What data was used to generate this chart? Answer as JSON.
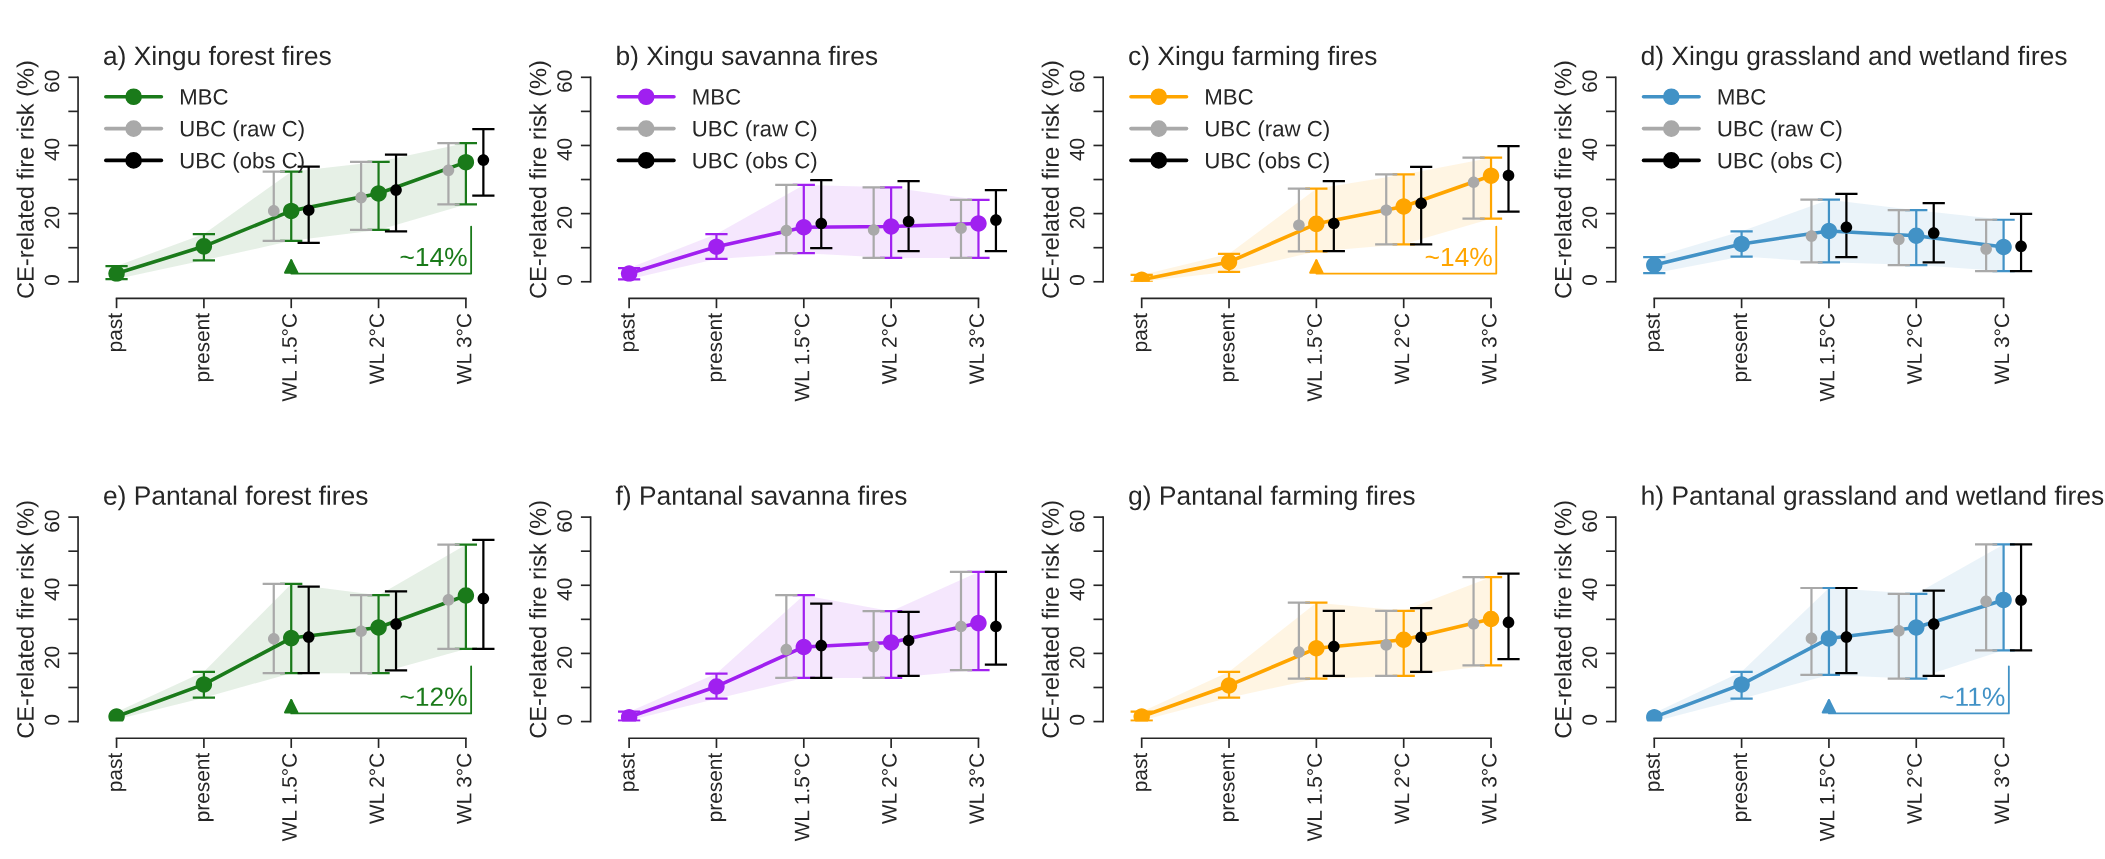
{
  "chart_data": [
    {
      "type": "line",
      "title": "a) Xingu forest fires",
      "ylabel": "CE-related fire risk (%)",
      "categories": [
        "past",
        "present",
        "WL 1.5°C",
        "WL 2°C",
        "WL 3°C"
      ],
      "ylim": [
        0,
        60
      ],
      "yticks": [
        0,
        {
          "value": 10,
          "label": null
        },
        20,
        {
          "value": 30,
          "label": null
        },
        40,
        {
          "value": 50,
          "label": null
        },
        60
      ],
      "marker": "circle",
      "legend": "top left",
      "annotations": [
        "~14%"
      ],
      "series": [
        {
          "name": "MBC",
          "color": "#1a7a1a",
          "values": [
            2.4,
            10.4,
            20.8,
            25.9,
            35.1
          ],
          "errors": [
            [
              0.8,
              4.6
            ],
            [
              6.3,
              14
            ],
            [
              12,
              32.3
            ],
            [
              15.2,
              35.2
            ],
            [
              22.7,
              40.7
            ]
          ],
          "lower": [
            0.8,
            6.3,
            12,
            15.2,
            22.7
          ],
          "upper": [
            4.6,
            14,
            32.3,
            35.2,
            40.7
          ]
        },
        {
          "name": "UBC (raw C)",
          "type": "scatter",
          "color": "#a9a9a9",
          "values": [
            null,
            null,
            20.8,
            24.7,
            32.7
          ],
          "errors": [
            null,
            null,
            [
              12,
              32.3
            ],
            [
              15.2,
              35.2
            ],
            [
              22.7,
              40.7
            ]
          ]
        },
        {
          "name": "UBC (obs C)",
          "type": "scatter",
          "color": "#000000",
          "values": [
            null,
            null,
            21,
            26.9,
            35.7
          ],
          "errors": [
            null,
            null,
            [
              11.4,
              33.8
            ],
            [
              14.8,
              37.3
            ],
            [
              25.3,
              44.8
            ]
          ]
        }
      ]
    },
    {
      "type": "line",
      "title": "b) Xingu savanna fires",
      "ylabel": "CE-related fire risk (%)",
      "categories": [
        "past",
        "present",
        "WL 1.5°C",
        "WL 2°C",
        "WL 3°C"
      ],
      "ylim": [
        0,
        60
      ],
      "yticks": [
        0,
        {
          "value": 10,
          "label": null
        },
        20,
        {
          "value": 30,
          "label": null
        },
        40,
        {
          "value": 50,
          "label": null
        },
        60
      ],
      "marker": "circle",
      "legend": "top left",
      "series": [
        {
          "name": "MBC",
          "color": "#a020f0",
          "values": [
            2.4,
            10.3,
            16,
            16.2,
            17.1
          ],
          "errors": [
            [
              0.7,
              4
            ],
            [
              6.7,
              14
            ],
            [
              8.4,
              28.4
            ],
            [
              7,
              27.7
            ],
            [
              7,
              24
            ]
          ],
          "lower": [
            0.7,
            6.7,
            8.4,
            7,
            7
          ],
          "upper": [
            4,
            14,
            28.4,
            27.7,
            24
          ]
        },
        {
          "name": "UBC (raw C)",
          "type": "scatter",
          "color": "#a9a9a9",
          "values": [
            null,
            null,
            15,
            15.2,
            15.7
          ],
          "errors": [
            null,
            null,
            [
              8.4,
              28.4
            ],
            [
              7,
              27.7
            ],
            [
              7,
              24
            ]
          ]
        },
        {
          "name": "UBC (obs C)",
          "type": "scatter",
          "color": "#000000",
          "values": [
            null,
            null,
            17.1,
            17.7,
            18.1
          ],
          "errors": [
            null,
            null,
            [
              9.9,
              29.8
            ],
            [
              9,
              29.5
            ],
            [
              9,
              26.9
            ]
          ]
        }
      ]
    },
    {
      "type": "line",
      "title": "c) Xingu farming fires",
      "ylabel": "CE-related fire risk (%)",
      "categories": [
        "past",
        "present",
        "WL 1.5°C",
        "WL 2°C",
        "WL 3°C"
      ],
      "ylim": [
        0,
        60
      ],
      "yticks": [
        0,
        {
          "value": 10,
          "label": null
        },
        20,
        {
          "value": 30,
          "label": null
        },
        40,
        {
          "value": 50,
          "label": null
        },
        60
      ],
      "marker": "circle",
      "legend": "top left",
      "annotations": [
        "~14%"
      ],
      "series": [
        {
          "name": "MBC",
          "color": "#ffa500",
          "values": [
            0.6,
            5.8,
            17,
            22.1,
            31.1
          ],
          "errors": [
            [
              0,
              2
            ],
            [
              2.9,
              8.2
            ],
            [
              8.9,
              27.3
            ],
            [
              11,
              31.5
            ],
            [
              18.5,
              36.4
            ]
          ],
          "lower": [
            0,
            2.9,
            8.9,
            11,
            18.5
          ],
          "upper": [
            2,
            8.2,
            27.3,
            31.5,
            36.4
          ]
        },
        {
          "name": "UBC (raw C)",
          "type": "scatter",
          "color": "#a9a9a9",
          "values": [
            null,
            null,
            16.6,
            21,
            29.2
          ],
          "errors": [
            null,
            null,
            [
              8.9,
              27.3
            ],
            [
              11,
              31.5
            ],
            [
              18.5,
              36.4
            ]
          ]
        },
        {
          "name": "UBC (obs C)",
          "type": "scatter",
          "color": "#000000",
          "values": [
            null,
            null,
            17.1,
            23,
            31.2
          ],
          "errors": [
            null,
            null,
            [
              9,
              29.5
            ],
            [
              11,
              33.7
            ],
            [
              20.6,
              39.8
            ]
          ]
        }
      ]
    },
    {
      "type": "line",
      "title": "d) Xingu grassland and wetland fires",
      "ylabel": "CE-related fire risk (%)",
      "categories": [
        "past",
        "present",
        "WL 1.5°C",
        "WL 2°C",
        "WL 3°C"
      ],
      "ylim": [
        0,
        60
      ],
      "yticks": [
        0,
        {
          "value": 10,
          "label": null
        },
        20,
        {
          "value": 30,
          "label": null
        },
        40,
        {
          "value": 50,
          "label": null
        },
        60
      ],
      "marker": "circle",
      "legend": "top left",
      "series": [
        {
          "name": "MBC",
          "color": "#4292c6",
          "values": [
            4.9,
            11.1,
            14.9,
            13.5,
            10.2
          ],
          "errors": [
            [
              2.5,
              7.2
            ],
            [
              7.4,
              14.8
            ],
            [
              5.7,
              24.1
            ],
            [
              4.9,
              21
            ],
            [
              3.1,
              18.2
            ]
          ],
          "lower": [
            2.5,
            7.4,
            5.7,
            4.9,
            3.1
          ],
          "upper": [
            7.2,
            14.8,
            24.1,
            21,
            18.2
          ]
        },
        {
          "name": "UBC (raw C)",
          "type": "scatter",
          "color": "#a9a9a9",
          "values": [
            null,
            null,
            13.4,
            12.4,
            9.6
          ],
          "errors": [
            null,
            null,
            [
              5.7,
              24.1
            ],
            [
              4.9,
              21
            ],
            [
              3.1,
              18.2
            ]
          ]
        },
        {
          "name": "UBC (obs C)",
          "type": "scatter",
          "color": "#000000",
          "values": [
            null,
            null,
            16,
            14.3,
            10.4
          ],
          "errors": [
            null,
            null,
            [
              7.2,
              25.8
            ],
            [
              5.7,
              23.1
            ],
            [
              3.1,
              19.9
            ]
          ]
        }
      ]
    },
    {
      "type": "line",
      "title": "e) Pantanal forest fires",
      "ylabel": "CE-related fire risk (%)",
      "categories": [
        "past",
        "present",
        "WL 1.5°C",
        "WL 2°C",
        "WL 3°C"
      ],
      "ylim": [
        0,
        60
      ],
      "yticks": [
        0,
        {
          "value": 10,
          "label": null
        },
        20,
        {
          "value": 30,
          "label": null
        },
        40,
        {
          "value": 50,
          "label": null
        },
        60
      ],
      "marker": "circle",
      "annotations": [
        "~12%"
      ],
      "series": [
        {
          "color": "#1a7a1a",
          "values": [
            1.5,
            10.9,
            24.5,
            27.6,
            37
          ],
          "errors": [
            null,
            [
              7,
              14.6
            ],
            [
              14.2,
              40.4
            ],
            [
              14.2,
              37.1
            ],
            [
              21.3,
              51.9
            ]
          ],
          "lower": [
            0.6,
            7,
            14.2,
            14.2,
            21.3
          ],
          "upper": [
            2.8,
            14.6,
            40.4,
            37.1,
            51.9
          ]
        },
        {
          "type": "scatter",
          "color": "#a9a9a9",
          "values": [
            null,
            null,
            24.3,
            26.5,
            35.7
          ],
          "errors": [
            null,
            null,
            [
              14.2,
              40.4
            ],
            [
              14.2,
              37.1
            ],
            [
              21.3,
              51.9
            ]
          ]
        },
        {
          "type": "scatter",
          "color": "#000000",
          "values": [
            null,
            null,
            24.8,
            28.6,
            36.1
          ],
          "errors": [
            null,
            null,
            [
              14.2,
              39.6
            ],
            [
              15,
              38.2
            ],
            [
              21.3,
              53.3
            ]
          ]
        }
      ]
    },
    {
      "type": "line",
      "title": "f) Pantanal savanna fires",
      "ylabel": "CE-related fire risk (%)",
      "categories": [
        "past",
        "present",
        "WL 1.5°C",
        "WL 2°C",
        "WL 3°C"
      ],
      "ylim": [
        0,
        60
      ],
      "yticks": [
        0,
        {
          "value": 10,
          "label": null
        },
        20,
        {
          "value": 30,
          "label": null
        },
        40,
        {
          "value": 50,
          "label": null
        },
        60
      ],
      "marker": "circle",
      "series": [
        {
          "color": "#a020f0",
          "values": [
            1.3,
            10.3,
            21.9,
            23.2,
            28.9
          ],
          "errors": [
            [
              0.3,
              2.9
            ],
            [
              6.7,
              14.1
            ],
            [
              12.8,
              37.1
            ],
            [
              12.8,
              32.4
            ],
            [
              15.1,
              43.9
            ]
          ],
          "lower": [
            0.3,
            6.7,
            12.8,
            12.8,
            15.1
          ],
          "upper": [
            2.9,
            14.1,
            37.1,
            32.4,
            43.9
          ]
        },
        {
          "type": "scatter",
          "color": "#a9a9a9",
          "values": [
            null,
            null,
            21.1,
            22,
            27.9
          ],
          "errors": [
            null,
            null,
            [
              12.8,
              37.1
            ],
            [
              12.8,
              32.4
            ],
            [
              15.1,
              43.9
            ]
          ]
        },
        {
          "type": "scatter",
          "color": "#000000",
          "values": [
            null,
            null,
            22.3,
            23.8,
            27.9
          ],
          "errors": [
            null,
            null,
            [
              12.8,
              34.6
            ],
            [
              13.4,
              32.2
            ],
            [
              16.7,
              43.9
            ]
          ]
        }
      ]
    },
    {
      "type": "line",
      "title": "g) Pantanal farming fires",
      "ylabel": "CE-related fire risk (%)",
      "categories": [
        "past",
        "present",
        "WL 1.5°C",
        "WL 2°C",
        "WL 3°C"
      ],
      "ylim": [
        0,
        60
      ],
      "yticks": [
        0,
        {
          "value": 10,
          "label": null
        },
        20,
        {
          "value": 30,
          "label": null
        },
        40,
        {
          "value": 50,
          "label": null
        },
        60
      ],
      "marker": "circle",
      "series": [
        {
          "color": "#ffa500",
          "values": [
            1.5,
            10.6,
            21.5,
            24,
            30.1
          ],
          "errors": [
            [
              0.3,
              2.9
            ],
            [
              7,
              14.6
            ],
            [
              12.6,
              34.9
            ],
            [
              13.4,
              32.5
            ],
            [
              16.5,
              42.4
            ]
          ],
          "lower": [
            0.3,
            7,
            12.6,
            13.4,
            16.5
          ],
          "upper": [
            2.9,
            14.6,
            34.9,
            32.5,
            42.4
          ]
        },
        {
          "type": "scatter",
          "color": "#a9a9a9",
          "values": [
            null,
            null,
            20.4,
            22.5,
            28.7
          ],
          "errors": [
            null,
            null,
            [
              12.6,
              34.9
            ],
            [
              13.4,
              32.5
            ],
            [
              16.5,
              42.4
            ]
          ]
        },
        {
          "type": "scatter",
          "color": "#000000",
          "values": [
            null,
            null,
            22,
            24.7,
            29.1
          ],
          "errors": [
            null,
            null,
            [
              13.4,
              32.5
            ],
            [
              14.6,
              33.3
            ],
            [
              18.3,
              43.4
            ]
          ]
        }
      ]
    },
    {
      "type": "line",
      "title": "h) Pantanal grassland and wetland fires",
      "ylabel": "CE-related fire risk (%)",
      "categories": [
        "past",
        "present",
        "WL 1.5°C",
        "WL 2°C",
        "WL 3°C"
      ],
      "ylim": [
        0,
        60
      ],
      "yticks": [
        0,
        {
          "value": 10,
          "label": null
        },
        20,
        {
          "value": 30,
          "label": null
        },
        40,
        {
          "value": 50,
          "label": null
        },
        60
      ],
      "marker": "circle",
      "annotations": [
        "~11%"
      ],
      "series": [
        {
          "color": "#4292c6",
          "values": [
            1.3,
            10.9,
            24.4,
            27.6,
            35.7
          ],
          "errors": [
            null,
            [
              6.7,
              14.6
            ],
            [
              13.7,
              39.2
            ],
            [
              12.6,
              37.5
            ],
            [
              20.9,
              52
            ]
          ],
          "lower": [
            0,
            6.7,
            13.7,
            12.6,
            20.9
          ],
          "upper": [
            2.5,
            14.6,
            39.2,
            37.5,
            52
          ]
        },
        {
          "type": "scatter",
          "color": "#a9a9a9",
          "values": [
            null,
            null,
            24.4,
            26.6,
            35.3
          ],
          "errors": [
            null,
            null,
            [
              13.7,
              39.2
            ],
            [
              12.6,
              37.5
            ],
            [
              20.9,
              52
            ]
          ]
        },
        {
          "type": "scatter",
          "color": "#000000",
          "values": [
            null,
            null,
            24.8,
            28.6,
            35.6
          ],
          "errors": [
            null,
            null,
            [
              14.2,
              39.2
            ],
            [
              13.4,
              38.4
            ],
            [
              20.9,
              52
            ]
          ]
        }
      ]
    }
  ]
}
